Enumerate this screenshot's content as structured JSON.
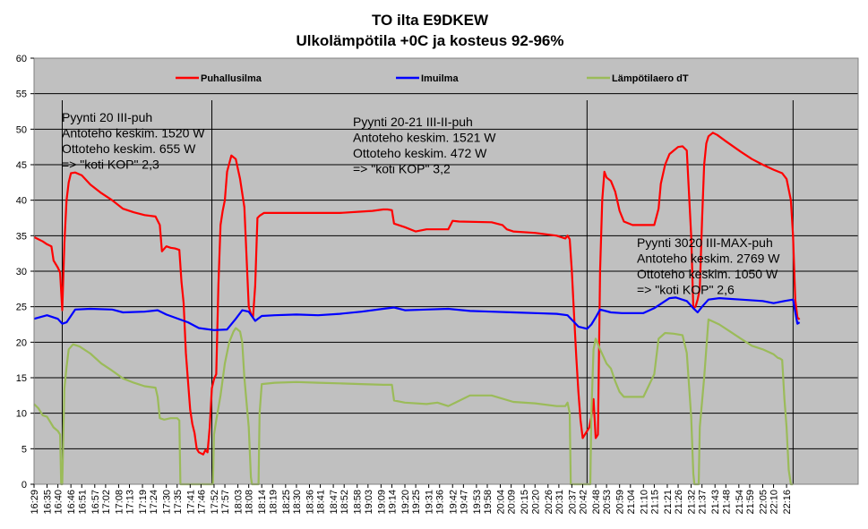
{
  "chart_data": {
    "type": "line",
    "title": "TO ilta E9DKEW",
    "subtitle": "Ulkolämpötila +0C ja kosteus 92-96%",
    "ylim": [
      0,
      60
    ],
    "y_ticks": [
      0,
      5,
      10,
      15,
      20,
      25,
      30,
      35,
      40,
      45,
      50,
      55,
      60
    ],
    "grid": "horizontal",
    "legend_position": "top",
    "plot_background": "#c0c0c0",
    "x_range": [
      "16:29",
      "22:26"
    ],
    "x_tick_labels": [
      "16:29",
      "16:35",
      "16:40",
      "16:46",
      "16:51",
      "16:57",
      "17:02",
      "17:08",
      "17:13",
      "17:19",
      "17:24",
      "17:30",
      "17:35",
      "17:41",
      "17:46",
      "17:52",
      "17:57",
      "18:03",
      "18:08",
      "18:14",
      "18:19",
      "18:25",
      "18:30",
      "18:36",
      "18:41",
      "18:47",
      "18:52",
      "18:58",
      "19:03",
      "19:09",
      "19:14",
      "19:20",
      "19:25",
      "19:31",
      "19:36",
      "19:42",
      "19:47",
      "19:53",
      "19:58",
      "20:04",
      "20:09",
      "20:15",
      "20:20",
      "20:26",
      "20:31",
      "20:37",
      "20:42",
      "20:48",
      "20:53",
      "20:59",
      "21:04",
      "21:10",
      "21:15",
      "21:21",
      "21:26",
      "21:32",
      "21:37",
      "21:43",
      "21:48",
      "21:54",
      "21:59",
      "22:05",
      "22:10",
      "22:16"
    ],
    "vertical_markers": [
      "16:42",
      "17:51",
      "20:44",
      "22:19"
    ],
    "series": [
      {
        "name": "Puhallusilma",
        "color": "#ff0000",
        "x": [
          "16:29",
          "16:33",
          "16:35",
          "16:37",
          "16:38",
          "16:40",
          "16:41",
          "16:42",
          "16:43",
          "16:44",
          "16:45",
          "16:46",
          "16:48",
          "16:51",
          "16:55",
          "17:00",
          "17:05",
          "17:10",
          "17:15",
          "17:20",
          "17:25",
          "17:27",
          "17:28",
          "17:30",
          "17:32",
          "17:34",
          "17:36",
          "17:37",
          "17:38",
          "17:39",
          "17:40",
          "17:41",
          "17:42",
          "17:43",
          "17:44",
          "17:45",
          "17:47",
          "17:48",
          "17:49",
          "17:50",
          "17:51",
          "17:52",
          "17:53",
          "17:54",
          "17:55",
          "17:56",
          "17:57",
          "17:58",
          "18:00",
          "18:02",
          "18:04",
          "18:06",
          "18:08",
          "18:09",
          "18:10",
          "18:11",
          "18:12",
          "18:13",
          "18:15",
          "18:20",
          "18:30",
          "18:40",
          "18:50",
          "19:00",
          "19:05",
          "19:10",
          "19:12",
          "19:14",
          "19:15",
          "19:20",
          "19:25",
          "19:30",
          "19:35",
          "19:40",
          "19:42",
          "19:45",
          "20:00",
          "20:05",
          "20:07",
          "20:10",
          "20:20",
          "20:30",
          "20:34",
          "20:35",
          "20:36",
          "20:37",
          "20:38",
          "20:39",
          "20:40",
          "20:41",
          "20:42",
          "20:43",
          "20:44",
          "20:45",
          "20:46",
          "20:47",
          "20:48",
          "20:49",
          "20:50",
          "20:51",
          "20:52",
          "20:53",
          "20:55",
          "20:57",
          "20:59",
          "21:01",
          "21:05",
          "21:10",
          "21:15",
          "21:17",
          "21:18",
          "21:20",
          "21:22",
          "21:24",
          "21:26",
          "21:28",
          "21:30",
          "21:32",
          "21:33",
          "21:34",
          "21:35",
          "21:36",
          "21:37",
          "21:38",
          "21:39",
          "21:40",
          "21:42",
          "21:44",
          "21:48",
          "21:55",
          "22:00",
          "22:05",
          "22:10",
          "22:14",
          "22:16",
          "22:18",
          "22:19",
          "22:20",
          "22:21",
          "22:22"
        ],
        "values": [
          34.8,
          34.2,
          33.8,
          33.5,
          31.5,
          30.5,
          29.8,
          24.5,
          34,
          40,
          42.5,
          43.8,
          43.9,
          43.5,
          42.2,
          41,
          40,
          38.8,
          38.3,
          37.9,
          37.7,
          36.5,
          32.8,
          33.5,
          33.3,
          33.2,
          33,
          28.5,
          25.5,
          18.5,
          14.5,
          10.5,
          8.5,
          7.2,
          5,
          4.5,
          4.2,
          4.8,
          4.5,
          8,
          13.5,
          14.8,
          15.5,
          28,
          36.5,
          38.5,
          40,
          44,
          46.3,
          45.8,
          43,
          39,
          25,
          24,
          23.6,
          28,
          37.5,
          37.8,
          38.2,
          38.2,
          38.2,
          38.2,
          38.2,
          38.4,
          38.5,
          38.7,
          38.7,
          38.6,
          36.7,
          36.2,
          35.6,
          35.9,
          35.9,
          35.9,
          37.1,
          37,
          36.9,
          36.5,
          35.9,
          35.6,
          35.4,
          35,
          34.6,
          35,
          34.5,
          30,
          24,
          18,
          13,
          9,
          6.5,
          7,
          7.5,
          8,
          9.5,
          12,
          6.5,
          7,
          30,
          40,
          44,
          43.2,
          42.7,
          41.2,
          38.5,
          37,
          36.5,
          36.5,
          36.5,
          38.8,
          42.3,
          45,
          46.5,
          47,
          47.5,
          47.6,
          47,
          35,
          24.8,
          25,
          26,
          27.5,
          37,
          45,
          48,
          49,
          49.5,
          49.2,
          48.3,
          46.8,
          45.8,
          45,
          44.3,
          43.8,
          43,
          40,
          35,
          26,
          23.5,
          23.2
        ]
      },
      {
        "name": "Imuilma",
        "color": "#0000ff",
        "x": [
          "16:29",
          "16:35",
          "16:40",
          "16:42",
          "16:44",
          "16:48",
          "16:55",
          "17:05",
          "17:10",
          "17:20",
          "17:26",
          "17:30",
          "17:40",
          "17:45",
          "17:52",
          "17:58",
          "18:02",
          "18:05",
          "18:08",
          "18:11",
          "18:14",
          "18:20",
          "18:30",
          "18:40",
          "18:50",
          "19:00",
          "19:10",
          "19:15",
          "19:20",
          "19:30",
          "19:40",
          "19:50",
          "20:00",
          "20:10",
          "20:20",
          "20:30",
          "20:35",
          "20:40",
          "20:44",
          "20:46",
          "20:48",
          "20:50",
          "20:55",
          "21:00",
          "21:10",
          "21:15",
          "21:22",
          "21:25",
          "21:30",
          "21:33",
          "21:35",
          "21:37",
          "21:40",
          "21:45",
          "21:55",
          "22:05",
          "22:10",
          "22:15",
          "22:19",
          "22:21",
          "22:22"
        ],
        "values": [
          23.3,
          23.8,
          23.3,
          22.6,
          22.8,
          24.6,
          24.7,
          24.6,
          24.2,
          24.3,
          24.5,
          23.9,
          22.8,
          22,
          21.7,
          21.8,
          23.3,
          24.5,
          24.3,
          23,
          23.7,
          23.8,
          23.9,
          23.8,
          24,
          24.3,
          24.7,
          24.9,
          24.5,
          24.6,
          24.7,
          24.4,
          24.3,
          24.2,
          24.1,
          24,
          23.8,
          22.2,
          21.9,
          22.5,
          23.5,
          24.6,
          24.2,
          24.1,
          24.1,
          24.8,
          26.2,
          26.3,
          25.8,
          24.8,
          24.2,
          25,
          26,
          26.2,
          26,
          25.8,
          25.5,
          25.8,
          26,
          22.6,
          22.8
        ]
      },
      {
        "name": "Lämpötilaero dT",
        "color": "#9bbb59",
        "x": [
          "16:29",
          "16:31",
          "16:33",
          "16:35",
          "16:38",
          "16:40",
          "16:41",
          "16:41.5",
          "16:42",
          "16:43",
          "16:44",
          "16:45",
          "16:47",
          "16:50",
          "16:55",
          "17:00",
          "17:05",
          "17:10",
          "17:15",
          "17:20",
          "17:25",
          "17:26",
          "17:27",
          "17:29",
          "17:32",
          "17:35",
          "17:36",
          "17:36.5",
          "17:51.5",
          "17:52",
          "17:53",
          "17:55",
          "17:57",
          "17:59",
          "18:01",
          "18:02",
          "18:04",
          "18:05",
          "18:06",
          "18:08",
          "18:09",
          "18:09.5",
          "18:12.5",
          "18:13",
          "18:14",
          "18:20",
          "18:30",
          "18:40",
          "18:50",
          "19:00",
          "19:10",
          "19:14",
          "19:15",
          "19:20",
          "19:30",
          "19:35",
          "19:40",
          "19:50",
          "20:00",
          "20:10",
          "20:20",
          "20:30",
          "20:34",
          "20:35",
          "20:36",
          "20:36.5",
          "20:45.5",
          "20:46",
          "20:47",
          "20:48",
          "20:50",
          "20:53",
          "20:55",
          "20:57",
          "20:59",
          "21:01",
          "21:05",
          "21:10",
          "21:15",
          "21:17",
          "21:20",
          "21:24",
          "21:28",
          "21:30",
          "21:32",
          "21:33",
          "21:33.5",
          "21:35.5",
          "21:36",
          "21:38",
          "21:40",
          "21:45",
          "21:50",
          "21:55",
          "22:00",
          "22:05",
          "22:10",
          "22:12",
          "22:13",
          "22:14",
          "22:15",
          "22:16",
          "22:17",
          "22:18",
          "22:19"
        ],
        "values": [
          11.3,
          10.7,
          9.7,
          9.5,
          8,
          7.5,
          7,
          0,
          0,
          13.5,
          16.5,
          19,
          19.7,
          19.4,
          18.4,
          17,
          16,
          14.9,
          14.3,
          13.8,
          13.6,
          12.3,
          9.3,
          9.1,
          9.3,
          9.3,
          9,
          0,
          0,
          7,
          9,
          12.5,
          17,
          20,
          21.5,
          22,
          21.5,
          20,
          15,
          8,
          1,
          0,
          0,
          10,
          14.1,
          14.3,
          14.4,
          14.3,
          14.2,
          14.1,
          14,
          14,
          11.8,
          11.5,
          11.3,
          11.5,
          11,
          12.5,
          12.5,
          11.6,
          11.4,
          11,
          11,
          11.5,
          10,
          0,
          0,
          10,
          19,
          20.5,
          19,
          17,
          16.3,
          14.5,
          13,
          12.3,
          12.3,
          12.3,
          15.5,
          20.5,
          21.3,
          21.2,
          21,
          18.5,
          9.5,
          1.5,
          0,
          0,
          8,
          15,
          23.2,
          22.5,
          21.5,
          20.5,
          19.5,
          19,
          18.3,
          17.8,
          17.7,
          17.5,
          12,
          8,
          2,
          0,
          0
        ]
      }
    ],
    "annotations": [
      {
        "lines": [
          "Pyynti  20 III-puh",
          "Antoteho  keskim. 1520 W",
          "Ottoteho  keskim.  655 W",
          "=> \"koti  KOP\" 2,3"
        ]
      },
      {
        "lines": [
          "Pyynti  20-21 III-II-puh",
          "Antoteho  keskim. 1521 W",
          "Ottoteho  keskim.  472 W",
          "=> \"koti  KOP\" 3,2"
        ]
      },
      {
        "lines": [
          "Pyynti  3020 III-MAX-puh",
          "Antoteho  keskim. 2769 W",
          "Ottoteho  keskim.  1050 W",
          "=> \"koti  KOP\" 2,6"
        ]
      }
    ]
  }
}
